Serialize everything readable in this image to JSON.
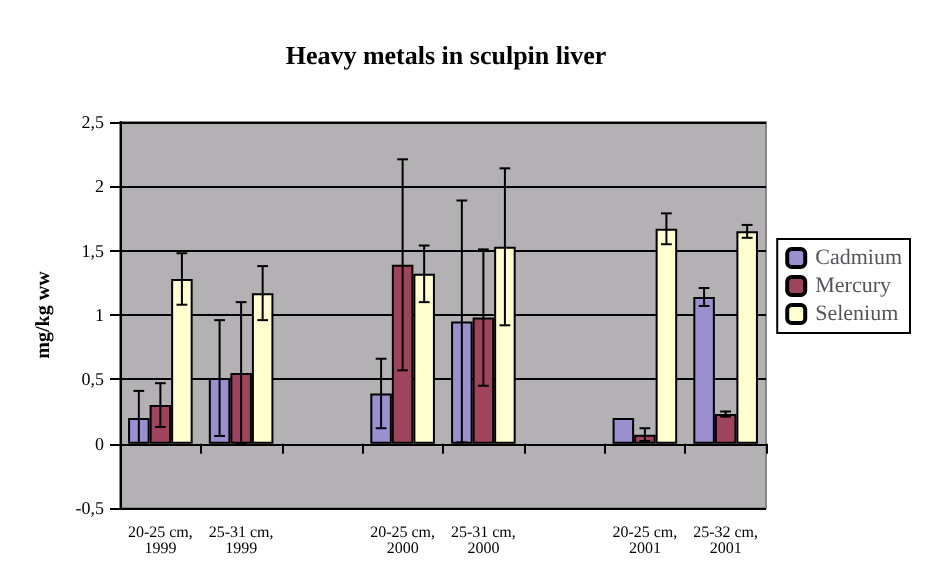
{
  "chart_data": {
    "type": "bar",
    "title": "Heavy metals in sculpin liver",
    "ylabel": "mg/kg ww",
    "categories": [
      "20-25 cm, 1999",
      "25-31 cm, 1999",
      null,
      "20-25 cm, 2000",
      "25-31 cm, 2000",
      null,
      "20-25 cm, 2001",
      "25-32 cm, 2001"
    ],
    "series": [
      {
        "name": "Cadmium",
        "color": "#9b8fd0",
        "values": [
          0.2,
          0.51,
          null,
          0.39,
          0.95,
          null,
          0.2,
          1.14
        ],
        "errors": [
          0.21,
          0.45,
          null,
          0.27,
          0.94,
          null,
          null,
          0.07
        ]
      },
      {
        "name": "Mercury",
        "color": "#a0445e",
        "values": [
          0.3,
          0.55,
          null,
          1.39,
          0.98,
          null,
          0.07,
          0.23
        ],
        "errors": [
          0.17,
          0.55,
          null,
          0.82,
          0.53,
          null,
          0.05,
          0.02
        ]
      },
      {
        "name": "Selenium",
        "color": "#ffffd0",
        "values": [
          1.28,
          1.17,
          null,
          1.32,
          1.53,
          null,
          1.67,
          1.65
        ],
        "errors": [
          0.2,
          0.21,
          null,
          0.22,
          0.61,
          null,
          0.12,
          0.05
        ]
      }
    ],
    "ylim": [
      -0.5,
      2.5
    ],
    "yticks": [
      {
        "value": -0.5,
        "label": "-0,5"
      },
      0,
      {
        "value": 0.5,
        "label": "0,5"
      },
      1,
      {
        "value": 1.5,
        "label": "1,5"
      },
      2,
      {
        "value": 2.5,
        "label": "2,5"
      }
    ],
    "grid": "y",
    "legend": "right"
  }
}
